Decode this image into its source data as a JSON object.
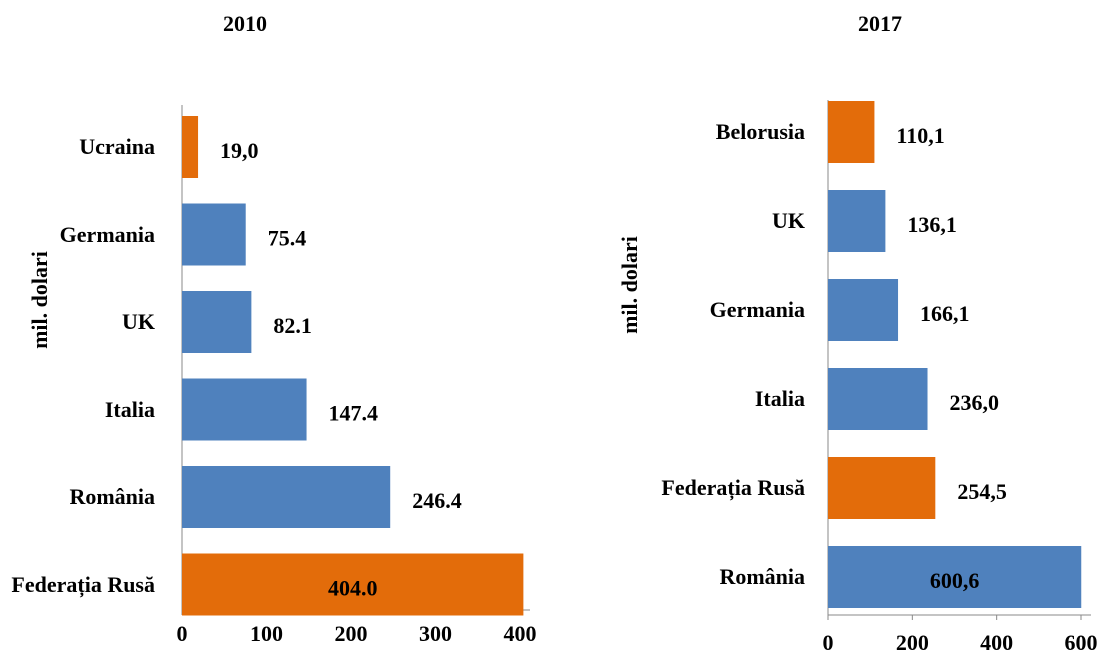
{
  "chart_data": [
    {
      "type": "bar",
      "orientation": "horizontal",
      "title": "2010",
      "y_label": "mil. dolari",
      "categories": [
        "Ucraina",
        "Germania",
        "UK",
        "Italia",
        "România",
        "Federația Rusă"
      ],
      "values": [
        19.0,
        75.4,
        82.1,
        147.4,
        246.4,
        404.0
      ],
      "value_labels": [
        "19,0",
        "75.4",
        "82.1",
        "147.4",
        "246.4",
        "404.0"
      ],
      "colors": [
        "#e36c0a",
        "#4f81bd",
        "#4f81bd",
        "#4f81bd",
        "#4f81bd",
        "#e36c0a"
      ],
      "xlim": [
        0,
        400
      ],
      "xticks": [
        0,
        100,
        200,
        300,
        400
      ]
    },
    {
      "type": "bar",
      "orientation": "horizontal",
      "title": "2017",
      "y_label": "mil. dolari",
      "categories": [
        "Belorusia",
        "UK",
        "Germania",
        "Italia",
        "Federația Rusă",
        "România"
      ],
      "values": [
        110.1,
        136.1,
        166.1,
        236.0,
        254.5,
        600.6
      ],
      "value_labels": [
        "110,1",
        "136,1",
        "166,1",
        "236,0",
        "254,5",
        "600,6"
      ],
      "colors": [
        "#e36c0a",
        "#4f81bd",
        "#4f81bd",
        "#4f81bd",
        "#e36c0a",
        "#4f81bd"
      ],
      "xlim": [
        0,
        600
      ],
      "xticks": [
        0,
        200,
        400,
        600
      ]
    }
  ]
}
